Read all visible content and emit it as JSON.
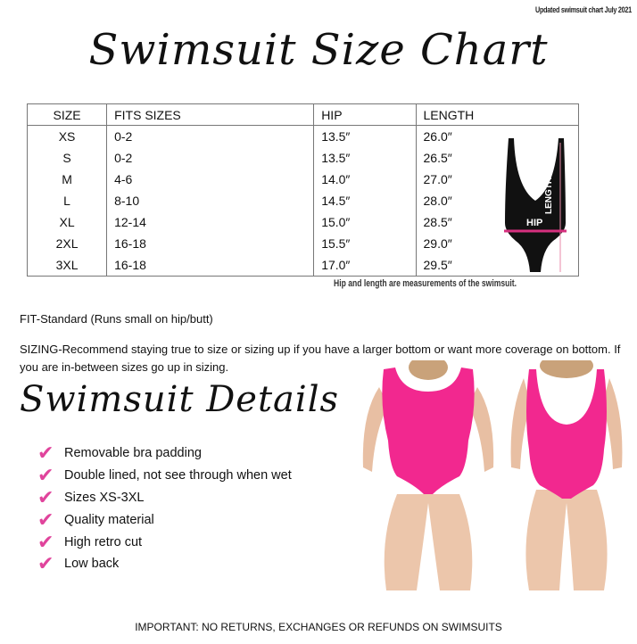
{
  "updated_note": "Updated swimsuit chart July 2021",
  "title": "Swimsuit Size Chart",
  "table": {
    "headers": [
      "SIZE",
      "FITS SIZES",
      "HIP",
      "LENGTH"
    ],
    "rows": [
      [
        "XS",
        "0-2",
        "13.5″",
        "26.0″"
      ],
      [
        "S",
        "0-2",
        "13.5″",
        "26.5″"
      ],
      [
        "M",
        "4-6",
        "14.0″",
        "27.0″"
      ],
      [
        "L",
        "8-10",
        "14.5″",
        "28.0″"
      ],
      [
        "XL",
        "12-14",
        "15.0″",
        "28.5″"
      ],
      [
        "2XL",
        "16-18",
        "15.5″",
        "29.0″"
      ],
      [
        "3XL",
        "16-18",
        "17.0″",
        "29.5″"
      ]
    ]
  },
  "diagram": {
    "length_label": "LENGTH",
    "hip_label": "HIP",
    "suit_color": "#111111",
    "hip_line_color": "#d6307e"
  },
  "measure_note": "Hip and length are measurements of the swimsuit.",
  "fit": "FIT-Standard (Runs small on hip/butt)",
  "sizing": "SIZING-Recommend staying true to size or sizing up if you have a larger bottom or want more coverage on bottom. If you are in-between sizes go up in sizing.",
  "details_title": "Swimsuit Details",
  "details": [
    "Removable bra padding",
    "Double lined, not see through when wet",
    "Sizes XS-3XL",
    "Quality material",
    "High retro cut",
    "Low back"
  ],
  "accent_color": "#e0449c",
  "swimsuit_color": "#f2288f",
  "footer": "IMPORTANT: NO RETURNS, EXCHANGES OR REFUNDS ON SWIMSUITS"
}
